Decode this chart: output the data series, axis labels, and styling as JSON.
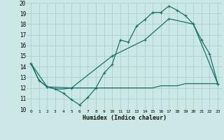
{
  "xlabel": "Humidex (Indice chaleur)",
  "bg_color": "#cce8e6",
  "grid_color": "#aacfcd",
  "line_color": "#1a7068",
  "xlim": [
    -0.5,
    23.5
  ],
  "ylim": [
    10,
    20
  ],
  "xticks": [
    0,
    1,
    2,
    3,
    4,
    5,
    6,
    7,
    8,
    9,
    10,
    11,
    12,
    13,
    14,
    15,
    16,
    17,
    18,
    19,
    20,
    21,
    22,
    23
  ],
  "yticks": [
    10,
    11,
    12,
    13,
    14,
    15,
    16,
    17,
    18,
    19,
    20
  ],
  "line1_x": [
    0,
    1,
    2,
    3,
    4,
    5,
    6,
    7,
    8,
    9,
    10,
    11,
    12,
    13,
    14,
    15,
    16,
    17,
    18,
    19,
    20,
    21,
    22,
    23
  ],
  "line1_y": [
    14.3,
    12.7,
    12.1,
    11.9,
    11.5,
    10.9,
    10.4,
    11.1,
    12.0,
    13.4,
    14.2,
    16.5,
    16.3,
    17.8,
    18.4,
    19.1,
    19.1,
    19.7,
    19.3,
    18.8,
    18.0,
    16.5,
    15.2,
    12.4
  ],
  "line2_x": [
    0,
    1,
    2,
    3,
    4,
    5,
    6,
    7,
    8,
    9,
    10,
    11,
    12,
    13,
    14,
    15,
    16,
    17,
    18,
    19,
    20,
    21,
    22,
    23
  ],
  "line2_y": [
    14.3,
    12.7,
    12.1,
    11.9,
    11.9,
    12.0,
    12.0,
    12.0,
    12.0,
    12.0,
    12.0,
    12.0,
    12.0,
    12.0,
    12.0,
    12.0,
    12.2,
    12.2,
    12.2,
    12.4,
    12.4,
    12.4,
    12.4,
    12.4
  ],
  "line3_x": [
    0,
    2,
    5,
    10,
    14,
    17,
    20,
    23
  ],
  "line3_y": [
    14.3,
    12.1,
    12.0,
    15.0,
    16.5,
    18.5,
    18.0,
    12.4
  ]
}
